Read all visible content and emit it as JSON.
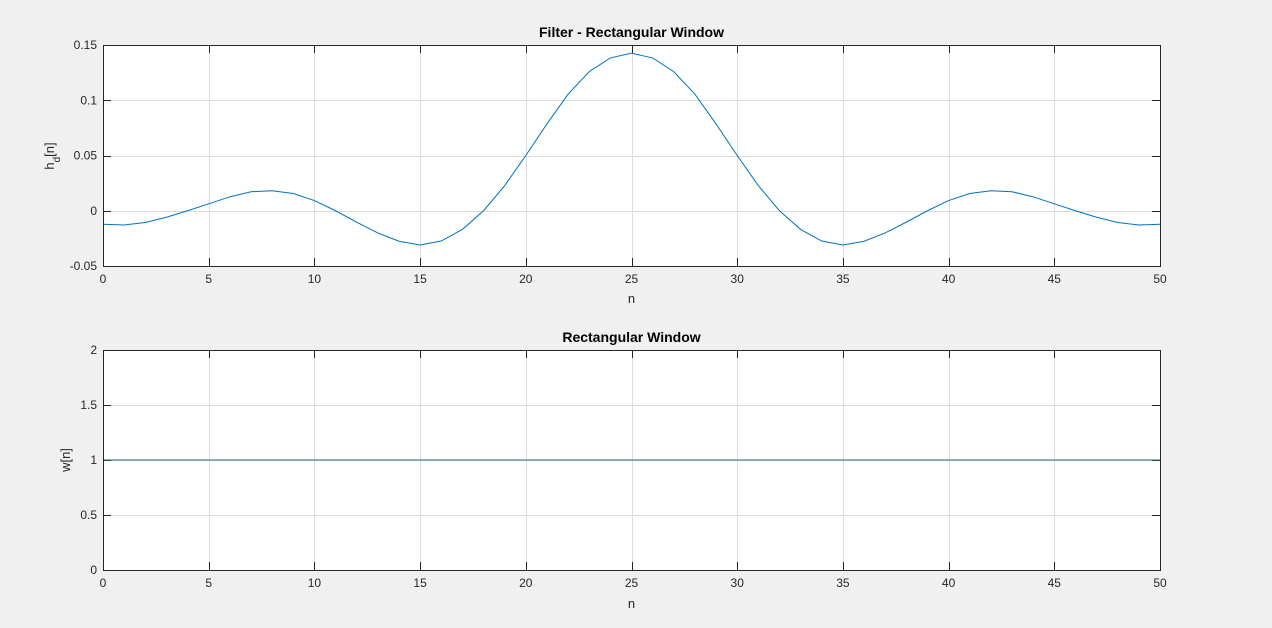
{
  "chart_data": [
    {
      "type": "line",
      "title": "Filter - Rectangular Window",
      "xlabel": "n",
      "ylabel": {
        "main": "h",
        "sub": "d",
        "tail": "[n]"
      },
      "xlim": [
        0,
        50
      ],
      "ylim": [
        -0.05,
        0.15
      ],
      "xticks": [
        "0",
        "5",
        "10",
        "15",
        "20",
        "25",
        "30",
        "35",
        "40",
        "45",
        "50"
      ],
      "yticks": [
        "-0.05",
        "0",
        "0.05",
        "0.1",
        "0.15"
      ],
      "grid": true,
      "color": "#0072bd",
      "series": [
        {
          "x": [
            0,
            1,
            2,
            3,
            4,
            5,
            6,
            7,
            8,
            9,
            10,
            11,
            12,
            13,
            14,
            15,
            16,
            17,
            18,
            19,
            20,
            21,
            22,
            23,
            24,
            25,
            26,
            27,
            28,
            29,
            30,
            31,
            32,
            33,
            34,
            35,
            36,
            37,
            38,
            39,
            40,
            41,
            42,
            43,
            44,
            45,
            46,
            47,
            48,
            49,
            50
          ],
          "y": [
            -0.0122,
            -0.0129,
            -0.0106,
            -0.0059,
            0,
            0.0063,
            0.0126,
            0.0172,
            0.0181,
            0.0156,
            0.0092,
            0,
            -0.0103,
            -0.0201,
            -0.0276,
            -0.031,
            -0.0274,
            -0.0169,
            0,
            0.0227,
            0.05,
            0.0786,
            0.1055,
            0.1259,
            0.1383,
            0.1426,
            0.1383,
            0.1259,
            0.1055,
            0.0786,
            0.05,
            0.0227,
            0,
            -0.0169,
            -0.0274,
            -0.031,
            -0.0276,
            -0.0201,
            -0.0103,
            0,
            0.0092,
            0.0156,
            0.0181,
            0.0172,
            0.0126,
            0.0063,
            0,
            -0.0059,
            -0.0106,
            -0.0129,
            -0.0122
          ]
        }
      ]
    },
    {
      "type": "line",
      "title": "Rectangular Window",
      "xlabel": "n",
      "ylabel": {
        "main": "w[n]",
        "sub": "",
        "tail": ""
      },
      "xlim": [
        0,
        50
      ],
      "ylim": [
        0,
        2
      ],
      "xticks": [
        "0",
        "5",
        "10",
        "15",
        "20",
        "25",
        "30",
        "35",
        "40",
        "45",
        "50"
      ],
      "yticks": [
        "0",
        "0.5",
        "1",
        "1.5",
        "2"
      ],
      "grid": true,
      "color": "#1f6f6f",
      "series": [
        {
          "x": [
            0,
            50
          ],
          "y": [
            1,
            1
          ]
        }
      ]
    }
  ]
}
